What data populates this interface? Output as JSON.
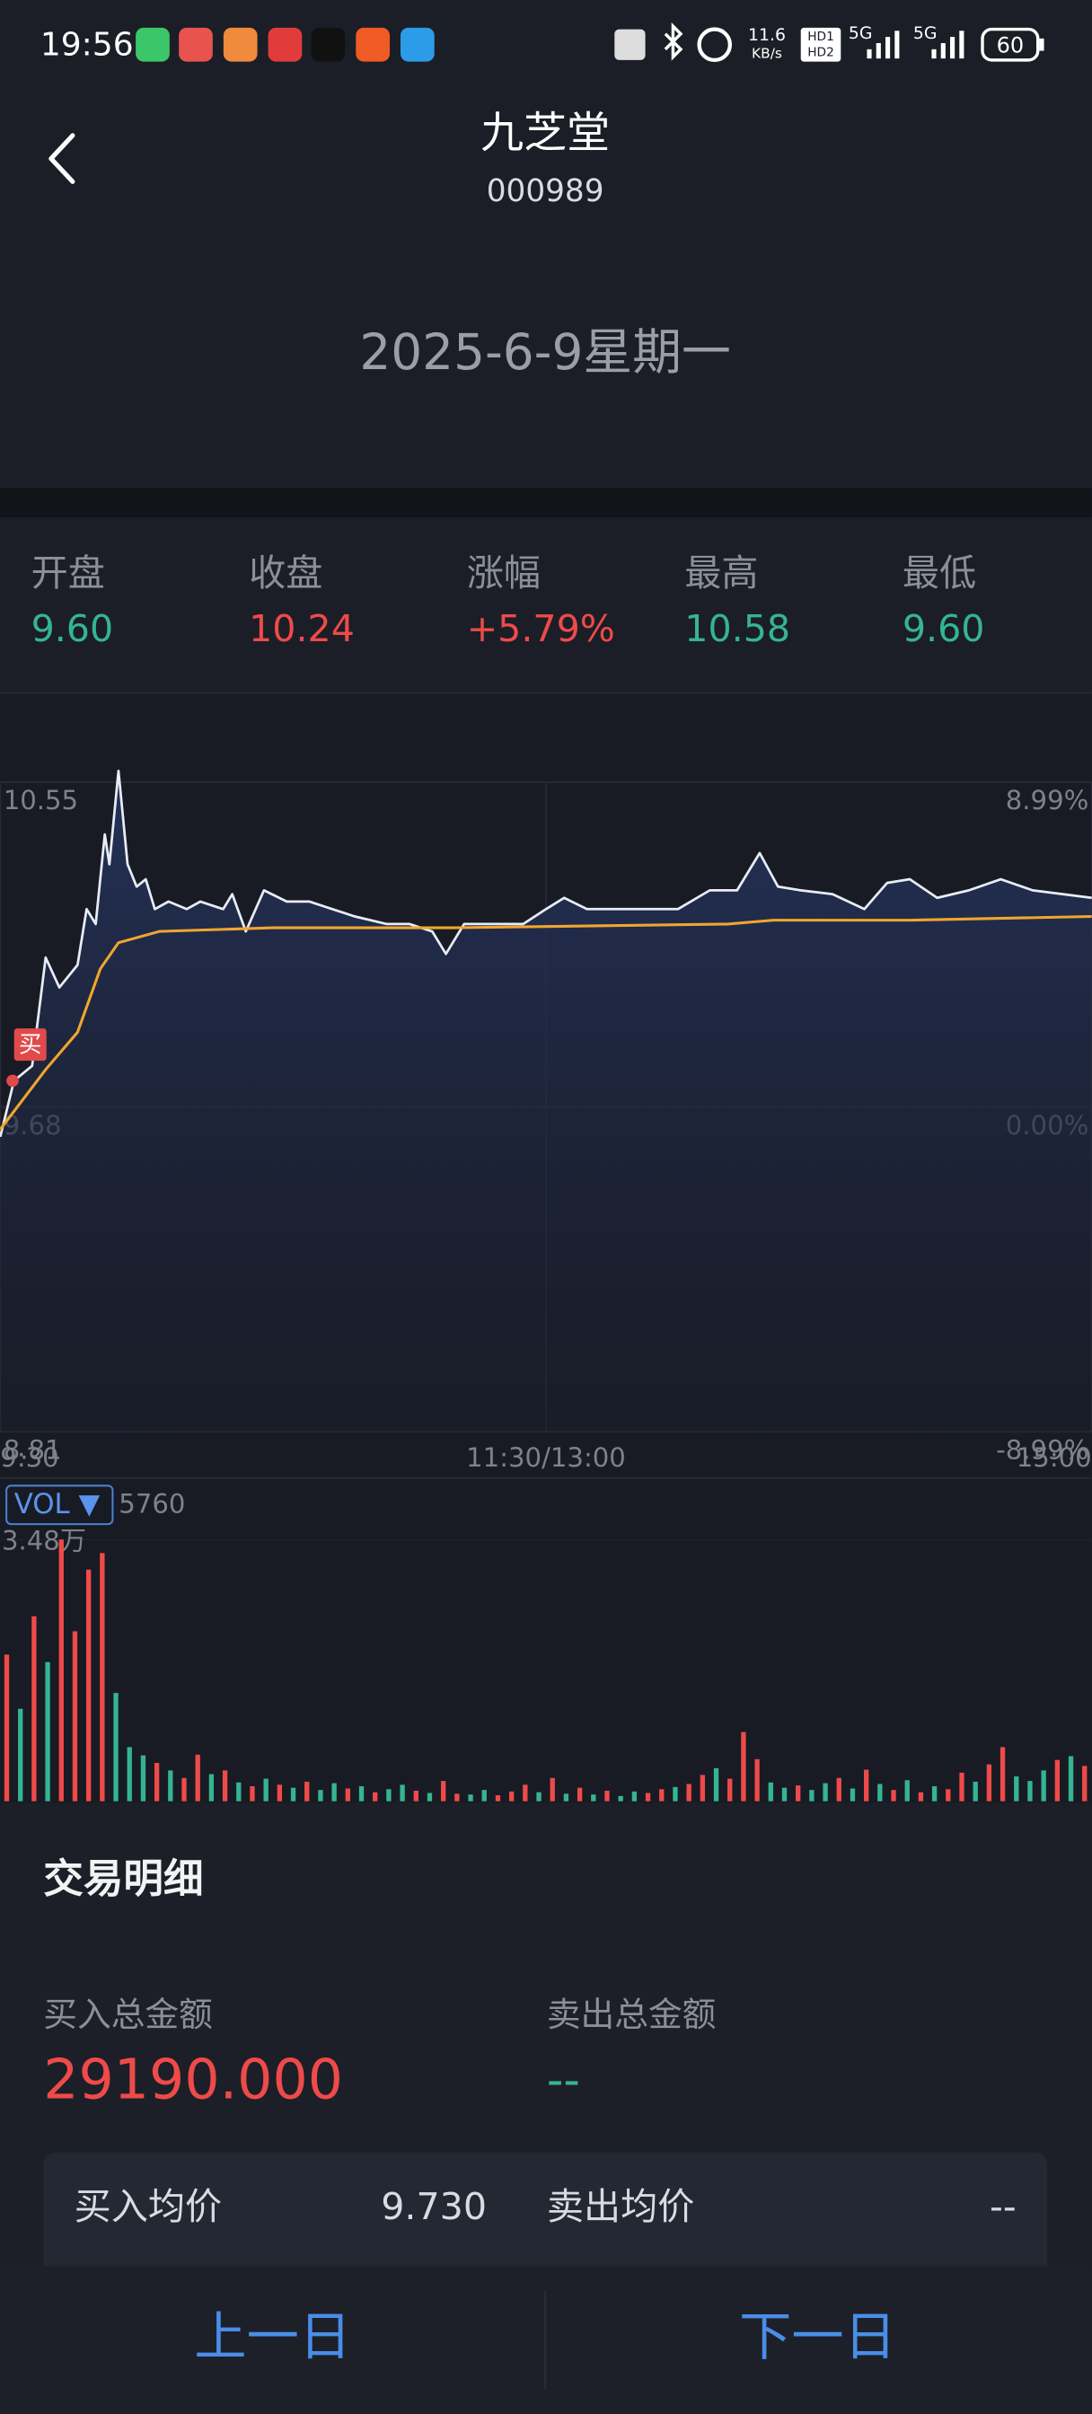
{
  "status_bar": {
    "time": "19:56",
    "network_speed": "11.6",
    "speed_unit": "KB/s",
    "hd_1": "HD1",
    "hd_2": "HD2",
    "signal_1": "5G",
    "signal_2": "5G",
    "battery": "60"
  },
  "header": {
    "title": "九芝堂",
    "code": "000989",
    "date": "2025-6-9星期一"
  },
  "summary": [
    {
      "label": "开盘",
      "value": "9.60",
      "color": "#35b494"
    },
    {
      "label": "收盘",
      "value": "10.24",
      "color": "#ef4a4a"
    },
    {
      "label": "涨幅",
      "value": "+5.79%",
      "color": "#ef4a4a"
    },
    {
      "label": "最高",
      "value": "10.58",
      "color": "#35b494"
    },
    {
      "label": "最低",
      "value": "9.60",
      "color": "#35b494"
    }
  ],
  "chart_data": {
    "type": "line",
    "xlim": [
      0,
      240
    ],
    "xticks": [
      {
        "value": 0,
        "label": "9:30"
      },
      {
        "value": 120,
        "label": "11:30/13:00"
      },
      {
        "value": 240,
        "label": "15:00"
      }
    ],
    "ylim": [
      8.81,
      10.55
    ],
    "yticks": [
      10.55,
      9.68,
      8.81
    ],
    "y2lim": [
      -8.99,
      8.99
    ],
    "y2ticks": [
      {
        "value": 8.99,
        "label": "8.99%"
      },
      {
        "value": 0,
        "label": "0.00%"
      },
      {
        "value": -8.99,
        "label": "-8.99%"
      }
    ],
    "grid": true,
    "price": {
      "color": "#e8ecf5",
      "x": [
        0,
        3,
        7,
        10,
        13,
        17,
        19,
        21,
        23,
        24,
        26,
        28,
        30,
        32,
        34,
        37,
        41,
        44,
        49,
        51,
        54,
        58,
        63,
        68,
        73,
        78,
        85,
        90,
        95,
        98,
        102,
        108,
        115,
        120,
        124,
        129,
        135,
        142,
        149,
        156,
        162,
        167,
        171,
        176,
        183,
        190,
        195,
        200,
        206,
        213,
        220,
        227,
        240
      ],
      "values": [
        9.6,
        9.75,
        9.79,
        10.08,
        10.0,
        10.06,
        10.21,
        10.17,
        10.41,
        10.33,
        10.58,
        10.33,
        10.27,
        10.29,
        10.21,
        10.23,
        10.21,
        10.23,
        10.21,
        10.25,
        10.15,
        10.26,
        10.23,
        10.23,
        10.21,
        10.19,
        10.17,
        10.17,
        10.15,
        10.09,
        10.17,
        10.17,
        10.17,
        10.21,
        10.24,
        10.21,
        10.21,
        10.21,
        10.21,
        10.26,
        10.26,
        10.36,
        10.27,
        10.26,
        10.25,
        10.21,
        10.28,
        10.29,
        10.24,
        10.26,
        10.29,
        10.26,
        10.24
      ]
    },
    "average": {
      "color": "#f0a62e",
      "x": [
        0,
        5,
        10,
        17,
        22,
        26,
        35,
        60,
        100,
        160,
        170,
        200,
        240
      ],
      "values": [
        9.62,
        9.7,
        9.78,
        9.88,
        10.05,
        10.12,
        10.15,
        10.16,
        10.16,
        10.17,
        10.18,
        10.18,
        10.19
      ]
    },
    "buy_marker": "买"
  },
  "volume_chart": {
    "type": "bar",
    "indicator": "VOL ▼",
    "current_volume": "5760",
    "ylim": [
      0,
      34800
    ],
    "yticks": [
      {
        "value": 34800,
        "label": "3.48万"
      }
    ],
    "up_color": "#ef4a4a",
    "down_color": "#35b494",
    "values": [
      19500,
      12300,
      24600,
      18500,
      34800,
      22600,
      30800,
      33000,
      14400,
      7200,
      6100,
      5100,
      4100,
      3100,
      6200,
      3600,
      4100,
      2500,
      2000,
      3000,
      2200,
      1800,
      2600,
      1500,
      2400,
      1700,
      2000,
      1200,
      1600,
      2200,
      1400,
      1100,
      2700,
      1000,
      900,
      1500,
      800,
      1300,
      2200,
      1200,
      3100,
      1000,
      1800,
      900,
      1400,
      700,
      1300,
      1100,
      1600,
      1900,
      2300,
      3500,
      4400,
      3000,
      9200,
      5600,
      2500,
      1800,
      2100,
      1500,
      2400,
      3100,
      1700,
      4200,
      2300,
      1500,
      2800,
      1200,
      2000,
      1600,
      3800,
      2600,
      4900,
      7200,
      3300,
      2700,
      4100,
      5500,
      6000,
      4700
    ],
    "rising": [
      true,
      false,
      true,
      false,
      true,
      true,
      true,
      true,
      false,
      false,
      false,
      true,
      false,
      true,
      true,
      false,
      true,
      false,
      true,
      false,
      true,
      false,
      true,
      false,
      false,
      true,
      false,
      true,
      false,
      false,
      true,
      false,
      true,
      true,
      false,
      false,
      true,
      true,
      true,
      false,
      true,
      false,
      true,
      false,
      true,
      false,
      false,
      true,
      true,
      false,
      true,
      true,
      false,
      true,
      true,
      true,
      false,
      false,
      true,
      false,
      false,
      true,
      false,
      true,
      false,
      true,
      false,
      true,
      false,
      true,
      true,
      false,
      true,
      true,
      false,
      false,
      false,
      true,
      false,
      true
    ]
  },
  "trade_detail": {
    "title": "交易明细",
    "buy_total_label": "买入总金额",
    "buy_total": "29190.000",
    "sell_total_label": "卖出总金额",
    "sell_total": "--",
    "buy_avg_label": "买入均价",
    "buy_avg": "9.730",
    "sell_avg_label": "卖出均价",
    "sell_avg": "--"
  },
  "footer": {
    "prev": "上一日",
    "next": "下一日"
  }
}
